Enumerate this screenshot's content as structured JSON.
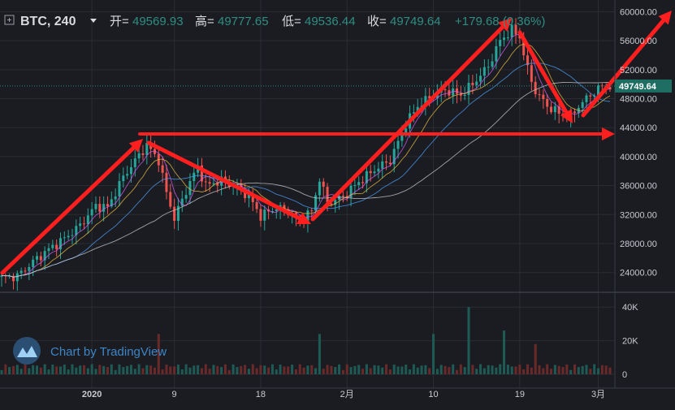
{
  "header": {
    "symbol": "BTC, 240",
    "open_label": "开=",
    "open_value": "49569.93",
    "high_label": "高=",
    "high_value": "49777.65",
    "low_label": "低=",
    "low_value": "49536.44",
    "close_label": "收=",
    "close_value": "49749.64",
    "change": "+179.68 (0.36%)"
  },
  "watermark": "Chart by TradingView",
  "colors": {
    "background": "#1b1c22",
    "grid": "#2b2d33",
    "up": "#26a69a",
    "down": "#ef5350",
    "arrow": "#ff1f1f",
    "price_tag": "#1e6e63",
    "text": "#c9cbd1"
  },
  "chart_data": [
    {
      "type": "candlestick",
      "title": "BTC, 240",
      "y_ticks": [
        "60000.00",
        "56000.00",
        "52000.00",
        "48000.00",
        "44000.00",
        "40000.00",
        "36000.00",
        "32000.00",
        "28000.00",
        "24000.00"
      ],
      "ylim": [
        21500,
        60500
      ],
      "x_ticks": [
        "2020",
        "9",
        "18",
        "2月",
        "10",
        "19",
        "3月"
      ],
      "last_price": "49749.64",
      "grid": true,
      "approx_close_series": [
        {
          "x": 0,
          "y": 23300
        },
        {
          "x": 4,
          "y": 23500
        },
        {
          "x": 8,
          "y": 25500
        },
        {
          "x": 12,
          "y": 27200
        },
        {
          "x": 16,
          "y": 28700
        },
        {
          "x": 20,
          "y": 30500
        },
        {
          "x": 24,
          "y": 33200
        },
        {
          "x": 27,
          "y": 33000
        },
        {
          "x": 31,
          "y": 37200
        },
        {
          "x": 35,
          "y": 40200
        },
        {
          "x": 37,
          "y": 41600
        },
        {
          "x": 40,
          "y": 39500
        },
        {
          "x": 42,
          "y": 35000
        },
        {
          "x": 44,
          "y": 31500
        },
        {
          "x": 46,
          "y": 34000
        },
        {
          "x": 48,
          "y": 36500
        },
        {
          "x": 50,
          "y": 38600
        },
        {
          "x": 52,
          "y": 36000
        },
        {
          "x": 56,
          "y": 36700
        },
        {
          "x": 60,
          "y": 35800
        },
        {
          "x": 63,
          "y": 34500
        },
        {
          "x": 66,
          "y": 31800
        },
        {
          "x": 70,
          "y": 33000
        },
        {
          "x": 73,
          "y": 32500
        },
        {
          "x": 76,
          "y": 31000
        },
        {
          "x": 79,
          "y": 32500
        },
        {
          "x": 81,
          "y": 37000
        },
        {
          "x": 83,
          "y": 33500
        },
        {
          "x": 87,
          "y": 34500
        },
        {
          "x": 91,
          "y": 36500
        },
        {
          "x": 95,
          "y": 38200
        },
        {
          "x": 99,
          "y": 39500
        },
        {
          "x": 103,
          "y": 44500
        },
        {
          "x": 106,
          "y": 47000
        },
        {
          "x": 110,
          "y": 48500
        },
        {
          "x": 113,
          "y": 49200
        },
        {
          "x": 117,
          "y": 48500
        },
        {
          "x": 120,
          "y": 50000
        },
        {
          "x": 124,
          "y": 52500
        },
        {
          "x": 127,
          "y": 56000
        },
        {
          "x": 130,
          "y": 57500
        },
        {
          "x": 132,
          "y": 56500
        },
        {
          "x": 134,
          "y": 52000
        },
        {
          "x": 136,
          "y": 49000
        },
        {
          "x": 139,
          "y": 47000
        },
        {
          "x": 142,
          "y": 46000
        },
        {
          "x": 145,
          "y": 45500
        },
        {
          "x": 147,
          "y": 47000
        },
        {
          "x": 150,
          "y": 48500
        },
        {
          "x": 153,
          "y": 49750
        }
      ]
    },
    {
      "type": "bar",
      "title": "Volume",
      "y_ticks": [
        "40K",
        "20K",
        "0"
      ],
      "ylim": [
        0,
        43000
      ]
    }
  ]
}
